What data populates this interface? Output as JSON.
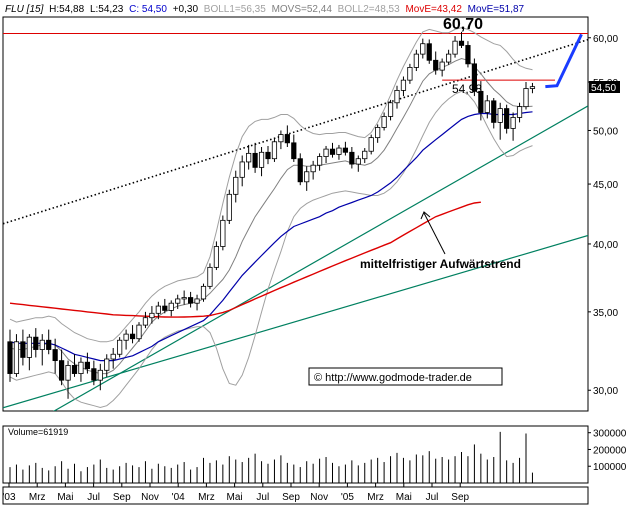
{
  "header": {
    "symbol": "FLU [15]",
    "high": "H:54,88",
    "low": "L:54,23",
    "close": "C: 54,50",
    "change": "+0,30",
    "boll1": "BOLL1=56,35",
    "movs": "MOVS=52,44",
    "boll2": "BOLL2=48,53",
    "move1": "MovE=43,42",
    "move2": "MovE=51,87"
  },
  "colors": {
    "price": "#000000",
    "boll": "#a0a0a0",
    "movs": "#808080",
    "move_long": "#dd0000",
    "move_short": "#0000aa",
    "trend": "#008060",
    "resistance": "#dd0000",
    "projection": "#1a3cff",
    "volume": "#000000",
    "current_badge": "#000000"
  },
  "annotations": {
    "high_label": "60,70",
    "support_label": "54,98",
    "trend_label": "mittelfristiger Aufwärtstrend",
    "copyright": "© http://www.godmode-trader.de",
    "current_price": "54,50"
  },
  "volume_panel": {
    "label": "Volume=61919",
    "ticks": [
      "300000",
      "200000",
      "100000"
    ]
  },
  "chart_data": {
    "type": "line",
    "subtype": "candlestick",
    "interval": "weekly",
    "x_ticks": [
      "'03",
      "Mrz",
      "Mai",
      "Jul",
      "Sep",
      "Nov",
      "'04",
      "Mrz",
      "Mai",
      "Jul",
      "Sep",
      "Nov",
      "'05",
      "Mrz",
      "Mai",
      "Jul",
      "Sep"
    ],
    "y_ticks": [
      "60,00",
      "55,00",
      "50,00",
      "45,00",
      "40,00",
      "35,00",
      "30,00"
    ],
    "y_ticks_values": [
      60,
      55,
      50,
      45,
      40,
      35,
      30
    ],
    "ylim": [
      28.8,
      62.5
    ],
    "ohlc": [
      [
        33.0,
        33.8,
        30.5,
        31.0
      ],
      [
        31.0,
        33.5,
        30.8,
        33.0
      ],
      [
        33.0,
        33.8,
        31.5,
        32.0
      ],
      [
        32.0,
        33.5,
        31.2,
        33.3
      ],
      [
        33.3,
        33.9,
        32.0,
        32.5
      ],
      [
        32.5,
        33.5,
        31.5,
        33.1
      ],
      [
        33.1,
        33.8,
        32.2,
        32.5
      ],
      [
        32.5,
        33.2,
        31.0,
        31.8
      ],
      [
        31.8,
        32.5,
        30.3,
        30.6
      ],
      [
        30.6,
        31.8,
        29.5,
        31.5
      ],
      [
        31.5,
        32.2,
        30.8,
        31.0
      ],
      [
        31.0,
        32.0,
        30.5,
        31.7
      ],
      [
        31.7,
        32.3,
        31.0,
        31.3
      ],
      [
        31.3,
        31.8,
        30.3,
        30.6
      ],
      [
        30.6,
        31.6,
        30.0,
        31.2
      ],
      [
        31.2,
        32.2,
        30.8,
        31.9
      ],
      [
        31.9,
        32.6,
        31.3,
        32.2
      ],
      [
        32.2,
        33.3,
        32.0,
        33.1
      ],
      [
        33.1,
        33.8,
        32.5,
        33.5
      ],
      [
        33.5,
        34.1,
        32.9,
        33.2
      ],
      [
        33.2,
        34.3,
        33.0,
        34.1
      ],
      [
        34.1,
        35.0,
        33.9,
        34.6
      ],
      [
        34.6,
        35.4,
        34.2,
        34.9
      ],
      [
        34.9,
        35.7,
        34.5,
        35.4
      ],
      [
        35.4,
        35.9,
        34.9,
        35.1
      ],
      [
        35.1,
        35.8,
        34.7,
        35.6
      ],
      [
        35.6,
        36.2,
        35.2,
        35.9
      ],
      [
        35.9,
        36.5,
        35.5,
        36.0
      ],
      [
        36.0,
        36.4,
        35.3,
        35.6
      ],
      [
        35.6,
        36.2,
        35.1,
        35.9
      ],
      [
        35.9,
        37.0,
        35.7,
        36.8
      ],
      [
        36.8,
        38.5,
        36.6,
        38.2
      ],
      [
        38.2,
        40.2,
        38.0,
        39.8
      ],
      [
        39.8,
        42.3,
        39.5,
        41.9
      ],
      [
        41.9,
        44.5,
        41.6,
        44.1
      ],
      [
        44.1,
        46.2,
        43.4,
        45.6
      ],
      [
        45.6,
        47.6,
        44.8,
        47.0
      ],
      [
        47.0,
        48.6,
        46.3,
        47.8
      ],
      [
        47.8,
        48.8,
        46.0,
        46.5
      ],
      [
        46.5,
        48.4,
        45.7,
        47.9
      ],
      [
        47.9,
        48.5,
        46.8,
        47.3
      ],
      [
        47.3,
        49.3,
        47.0,
        48.9
      ],
      [
        48.9,
        50.0,
        48.2,
        49.6
      ],
      [
        49.6,
        50.5,
        48.4,
        48.8
      ],
      [
        48.8,
        49.6,
        47.0,
        47.3
      ],
      [
        47.3,
        47.8,
        44.9,
        45.2
      ],
      [
        45.2,
        46.6,
        44.4,
        46.1
      ],
      [
        46.1,
        47.1,
        45.4,
        46.7
      ],
      [
        46.7,
        47.8,
        46.2,
        47.5
      ],
      [
        47.5,
        48.5,
        46.9,
        48.2
      ],
      [
        48.2,
        48.8,
        47.4,
        47.7
      ],
      [
        47.7,
        48.6,
        47.2,
        48.3
      ],
      [
        48.3,
        48.9,
        47.6,
        47.9
      ],
      [
        47.9,
        48.4,
        46.4,
        46.8
      ],
      [
        46.8,
        47.6,
        46.1,
        47.3
      ],
      [
        47.3,
        48.3,
        46.9,
        48.0
      ],
      [
        48.0,
        49.6,
        47.7,
        49.3
      ],
      [
        49.3,
        50.6,
        48.8,
        50.3
      ],
      [
        50.3,
        51.8,
        50.0,
        51.4
      ],
      [
        51.4,
        53.1,
        51.0,
        52.8
      ],
      [
        52.8,
        54.6,
        52.2,
        54.1
      ],
      [
        54.1,
        55.6,
        53.5,
        55.2
      ],
      [
        55.2,
        57.0,
        54.8,
        56.6
      ],
      [
        56.6,
        58.6,
        56.2,
        58.1
      ],
      [
        58.1,
        59.9,
        57.6,
        59.3
      ],
      [
        59.3,
        59.8,
        57.0,
        57.4
      ],
      [
        57.4,
        58.4,
        55.8,
        56.3
      ],
      [
        56.3,
        57.6,
        55.6,
        57.2
      ],
      [
        57.2,
        58.6,
        56.9,
        58.1
      ],
      [
        58.1,
        60.2,
        57.7,
        59.6
      ],
      [
        59.6,
        60.7,
        58.8,
        59.1
      ],
      [
        59.1,
        59.6,
        56.6,
        57.0
      ],
      [
        57.0,
        57.6,
        53.5,
        54.0
      ],
      [
        54.0,
        55.1,
        51.0,
        51.8
      ],
      [
        51.8,
        53.6,
        51.2,
        53.0
      ],
      [
        53.0,
        53.3,
        50.2,
        50.8
      ],
      [
        50.8,
        52.8,
        49.1,
        52.2
      ],
      [
        52.2,
        52.6,
        49.7,
        50.2
      ],
      [
        50.2,
        51.8,
        49.0,
        51.3
      ],
      [
        51.3,
        52.8,
        50.8,
        52.4
      ],
      [
        52.4,
        55.0,
        52.1,
        54.3
      ],
      [
        54.3,
        54.9,
        53.8,
        54.5
      ]
    ],
    "boll_upper": [
      34.5,
      34.3,
      34.4,
      34.5,
      34.6,
      34.6,
      34.7,
      34.6,
      34.2,
      33.9,
      33.6,
      33.4,
      33.2,
      33.1,
      33.0,
      33.0,
      33.1,
      33.5,
      34.0,
      34.5,
      35.0,
      35.6,
      36.1,
      36.5,
      36.8,
      37.0,
      37.2,
      37.3,
      37.4,
      37.5,
      37.8,
      39.0,
      41.0,
      43.3,
      45.6,
      47.7,
      49.4,
      50.4,
      50.9,
      51.1,
      51.1,
      51.3,
      51.6,
      51.6,
      51.2,
      50.5,
      50.0,
      49.7,
      49.6,
      49.7,
      49.7,
      49.8,
      49.8,
      49.6,
      49.4,
      49.3,
      49.8,
      50.8,
      52.1,
      53.6,
      55.2,
      56.7,
      58.1,
      59.5,
      60.7,
      61.0,
      60.8,
      60.6,
      60.6,
      61.0,
      61.2,
      61.0,
      60.6,
      60.1,
      59.7,
      59.3,
      59.1,
      58.4,
      57.5,
      56.8,
      56.5,
      56.35
    ],
    "boll_lower": [
      30.8,
      30.6,
      30.7,
      30.8,
      30.9,
      31.0,
      31.1,
      31.0,
      30.5,
      29.9,
      29.5,
      29.3,
      29.2,
      29.1,
      29.0,
      29.1,
      29.4,
      29.8,
      30.3,
      30.8,
      31.3,
      31.9,
      32.5,
      33.0,
      33.3,
      33.5,
      33.7,
      33.8,
      33.9,
      34.0,
      34.0,
      33.6,
      32.6,
      31.3,
      30.4,
      30.3,
      30.9,
      32.0,
      33.4,
      35.0,
      36.6,
      38.0,
      39.4,
      41.0,
      42.2,
      42.9,
      43.3,
      43.6,
      43.8,
      44.0,
      44.2,
      44.3,
      44.4,
      44.3,
      44.2,
      44.1,
      44.0,
      44.0,
      44.2,
      44.6,
      45.2,
      46.0,
      47.0,
      48.2,
      49.5,
      50.8,
      51.8,
      52.6,
      53.2,
      53.7,
      54.0,
      53.7,
      52.9,
      51.7,
      50.4,
      49.2,
      48.2,
      47.5,
      47.6,
      48.0,
      48.3,
      48.53
    ],
    "movs": [
      32.6,
      32.5,
      32.5,
      32.6,
      32.7,
      32.8,
      32.9,
      32.8,
      32.4,
      31.9,
      31.6,
      31.4,
      31.2,
      31.1,
      31.0,
      31.0,
      31.2,
      31.6,
      32.1,
      32.6,
      33.1,
      33.7,
      34.3,
      34.7,
      35.0,
      35.2,
      35.4,
      35.5,
      35.6,
      35.7,
      35.9,
      36.3,
      36.8,
      37.3,
      38.0,
      39.0,
      40.2,
      41.2,
      42.2,
      43.0,
      43.8,
      44.6,
      45.5,
      46.3,
      46.7,
      46.7,
      46.6,
      46.6,
      46.7,
      46.8,
      46.9,
      47.0,
      47.1,
      46.9,
      46.8,
      46.7,
      46.9,
      47.4,
      48.1,
      49.1,
      50.2,
      51.3,
      52.5,
      53.8,
      55.1,
      55.9,
      56.3,
      56.6,
      56.9,
      57.3,
      57.6,
      57.4,
      56.7,
      55.9,
      55.0,
      54.2,
      53.6,
      52.9,
      52.5,
      52.4,
      52.4,
      52.44
    ],
    "move_short": [
      33.0,
      32.9,
      32.9,
      32.9,
      32.9,
      32.9,
      32.9,
      32.8,
      32.6,
      32.4,
      32.2,
      32.1,
      32.0,
      31.9,
      31.8,
      31.8,
      31.8,
      31.9,
      32.0,
      32.1,
      32.3,
      32.5,
      32.7,
      33.0,
      33.2,
      33.4,
      33.6,
      33.8,
      34.0,
      34.2,
      34.4,
      34.8,
      35.3,
      35.8,
      36.4,
      37.0,
      37.6,
      38.1,
      38.6,
      39.1,
      39.6,
      40.1,
      40.6,
      41.0,
      41.4,
      41.6,
      41.8,
      42.0,
      42.2,
      42.5,
      42.7,
      43.0,
      43.2,
      43.4,
      43.6,
      43.8,
      44.0,
      44.3,
      44.7,
      45.1,
      45.6,
      46.2,
      46.8,
      47.4,
      48.1,
      48.6,
      49.1,
      49.6,
      50.1,
      50.6,
      51.1,
      51.4,
      51.6,
      51.7,
      51.7,
      51.6,
      51.6,
      51.6,
      51.6,
      51.7,
      51.8,
      51.87
    ],
    "move_long_start_index": 0,
    "move_long": [
      35.6,
      35.55,
      35.5,
      35.45,
      35.4,
      35.35,
      35.3,
      35.25,
      35.2,
      35.15,
      35.1,
      35.05,
      35.0,
      34.95,
      34.9,
      34.85,
      34.8,
      34.78,
      34.76,
      34.74,
      34.72,
      34.7,
      34.68,
      34.66,
      34.65,
      34.64,
      34.64,
      34.65,
      34.66,
      34.68,
      34.7,
      34.75,
      34.85,
      34.95,
      35.1,
      35.3,
      35.5,
      35.7,
      35.9,
      36.1,
      36.3,
      36.5,
      36.7,
      36.9,
      37.1,
      37.3,
      37.5,
      37.7,
      37.9,
      38.1,
      38.3,
      38.5,
      38.7,
      38.9,
      39.1,
      39.3,
      39.5,
      39.7,
      39.9,
      40.1,
      40.4,
      40.7,
      41.0,
      41.3,
      41.6,
      41.9,
      42.2,
      42.4,
      42.6,
      42.8,
      43.0,
      43.2,
      43.35,
      43.42
    ],
    "volume": [
      95000,
      110000,
      80000,
      105000,
      120000,
      90000,
      75000,
      100000,
      130000,
      85000,
      115000,
      70000,
      95000,
      110000,
      140000,
      90000,
      80000,
      100000,
      120000,
      105000,
      95000,
      130000,
      85000,
      115000,
      100000,
      90000,
      110000,
      125000,
      80000,
      95000,
      150000,
      120000,
      135000,
      110000,
      160000,
      140000,
      125000,
      150000,
      175000,
      130000,
      115000,
      140000,
      165000,
      120000,
      110000,
      95000,
      130000,
      115000,
      145000,
      155000,
      120000,
      100000,
      110000,
      135000,
      105000,
      120000,
      140000,
      150000,
      125000,
      160000,
      180000,
      150000,
      135000,
      170000,
      165000,
      190000,
      145000,
      155000,
      140000,
      160000,
      185000,
      160000,
      230000,
      175000,
      140000,
      155000,
      305000,
      135000,
      120000,
      150000,
      295000,
      61919
    ],
    "volume_ylim": [
      0,
      340000
    ]
  }
}
